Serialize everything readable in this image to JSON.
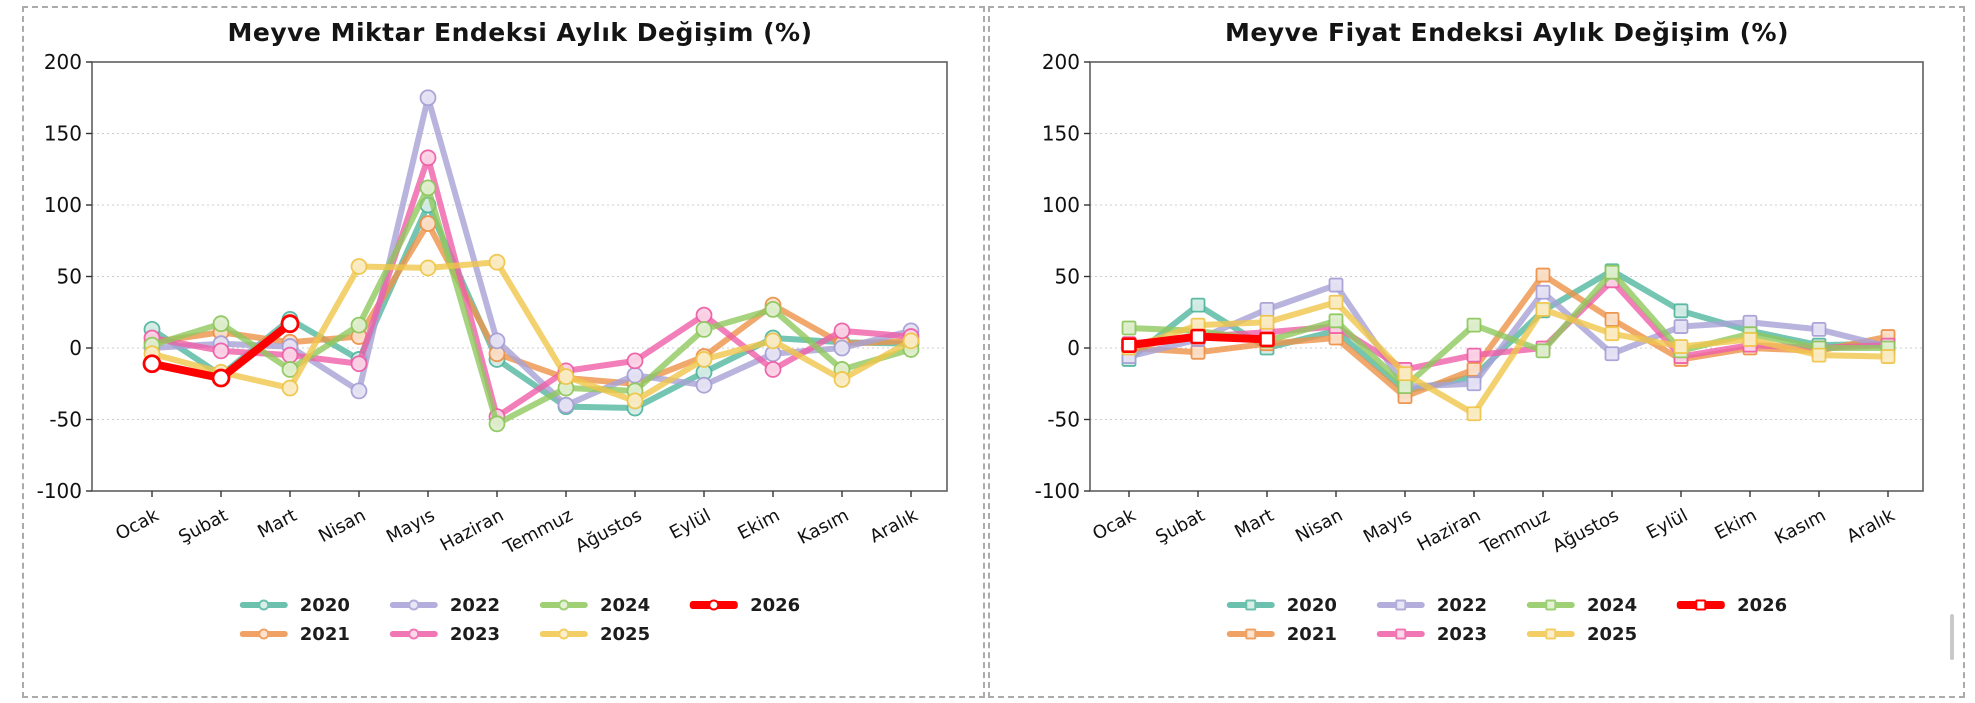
{
  "chart_data": [
    {
      "type": "line",
      "title": "Meyve Miktar Endeksi Aylık Değişim (%)",
      "marker_shape": "circle",
      "categories": [
        "Ocak",
        "Şubat",
        "Mart",
        "Nisan",
        "Mayıs",
        "Haziran",
        "Temmuz",
        "Ağustos",
        "Eylül",
        "Ekim",
        "Kasım",
        "Aralık"
      ],
      "ylabel": "",
      "xlabel": "",
      "ylim": [
        -100,
        200
      ],
      "yticks": [
        200,
        150,
        100,
        50,
        0,
        -50,
        -100
      ],
      "grid": "horizontal dotted",
      "legend_position": "below plot, 4 columns 2 rows",
      "series": [
        {
          "name": "2020",
          "color": "#53b7a0",
          "marker_fill": "#d4ece5",
          "highlight": false,
          "values": [
            13,
            -19,
            20,
            -8,
            100,
            -8,
            -41,
            -42,
            -17,
            7,
            4,
            3
          ]
        },
        {
          "name": "2021",
          "color": "#ee9249",
          "marker_fill": "#fbdfc8",
          "highlight": false,
          "values": [
            4,
            11,
            4,
            8,
            87,
            -4,
            -21,
            -25,
            -6,
            30,
            3,
            5
          ]
        },
        {
          "name": "2022",
          "color": "#a7a1d6",
          "marker_fill": "#e5e3f4",
          "highlight": false,
          "values": [
            0,
            3,
            1,
            -30,
            175,
            5,
            -40,
            -19,
            -26,
            -4,
            0,
            12
          ]
        },
        {
          "name": "2023",
          "color": "#ef5fa7",
          "marker_fill": "#fbd3e6",
          "highlight": false,
          "values": [
            7,
            -2,
            -5,
            -11,
            133,
            -48,
            -16,
            -9,
            23,
            -15,
            12,
            8
          ]
        },
        {
          "name": "2024",
          "color": "#8fc85e",
          "marker_fill": "#e0efcf",
          "highlight": false,
          "values": [
            2,
            17,
            -15,
            16,
            112,
            -53,
            -28,
            -30,
            13,
            27,
            -15,
            -1
          ]
        },
        {
          "name": "2025",
          "color": "#f0c64a",
          "marker_fill": "#faecc4",
          "highlight": false,
          "values": [
            -4,
            -17,
            -28,
            57,
            56,
            60,
            -20,
            -37,
            -8,
            5,
            -22,
            5
          ]
        },
        {
          "name": "2026",
          "color": "#ff0000",
          "marker_fill": "#ffffff",
          "highlight": true,
          "values": [
            -11,
            -21,
            17,
            null,
            null,
            null,
            null,
            null,
            null,
            null,
            null,
            null
          ]
        }
      ]
    },
    {
      "type": "line",
      "title": "Meyve Fiyat Endeksi Aylık Değişim (%)",
      "marker_shape": "square",
      "categories": [
        "Ocak",
        "Şubat",
        "Mart",
        "Nisan",
        "Mayıs",
        "Haziran",
        "Temmuz",
        "Ağustos",
        "Eylül",
        "Ekim",
        "Kasım",
        "Aralık"
      ],
      "ylabel": "",
      "xlabel": "",
      "ylim": [
        -100,
        200
      ],
      "yticks": [
        200,
        150,
        100,
        50,
        0,
        -50,
        -100
      ],
      "grid": "horizontal dotted",
      "legend_position": "below plot, 4 columns 2 rows",
      "series": [
        {
          "name": "2020",
          "color": "#53b7a0",
          "marker_fill": "#d4ece5",
          "highlight": false,
          "values": [
            -8,
            30,
            0,
            12,
            -30,
            -20,
            26,
            54,
            26,
            12,
            2,
            3
          ]
        },
        {
          "name": "2021",
          "color": "#ee9249",
          "marker_fill": "#fbdfc8",
          "highlight": false,
          "values": [
            0,
            -3,
            3,
            7,
            -34,
            -15,
            51,
            20,
            -8,
            0,
            -2,
            8
          ]
        },
        {
          "name": "2022",
          "color": "#a7a1d6",
          "marker_fill": "#e5e3f4",
          "highlight": false,
          "values": [
            -6,
            6,
            27,
            44,
            -27,
            -25,
            39,
            -4,
            15,
            18,
            13,
            1
          ]
        },
        {
          "name": "2023",
          "color": "#ef5fa7",
          "marker_fill": "#fbd3e6",
          "highlight": false,
          "values": [
            3,
            8,
            11,
            15,
            -15,
            -5,
            0,
            47,
            -6,
            2,
            0,
            2
          ]
        },
        {
          "name": "2024",
          "color": "#8fc85e",
          "marker_fill": "#e0efcf",
          "highlight": false,
          "values": [
            14,
            12,
            5,
            19,
            -27,
            16,
            -2,
            53,
            -2,
            10,
            0,
            0
          ]
        },
        {
          "name": "2025",
          "color": "#f0c64a",
          "marker_fill": "#faecc4",
          "highlight": false,
          "values": [
            0,
            16,
            18,
            32,
            -18,
            -46,
            27,
            10,
            1,
            6,
            -5,
            -6
          ]
        },
        {
          "name": "2026",
          "color": "#ff0000",
          "marker_fill": "#ffffff",
          "highlight": true,
          "values": [
            2,
            8,
            6,
            null,
            null,
            null,
            null,
            null,
            null,
            null,
            null,
            null
          ]
        }
      ]
    }
  ],
  "legend_rows": [
    [
      "2020",
      "2022",
      "2024",
      "2026"
    ],
    [
      "2021",
      "2023",
      "2025"
    ]
  ]
}
